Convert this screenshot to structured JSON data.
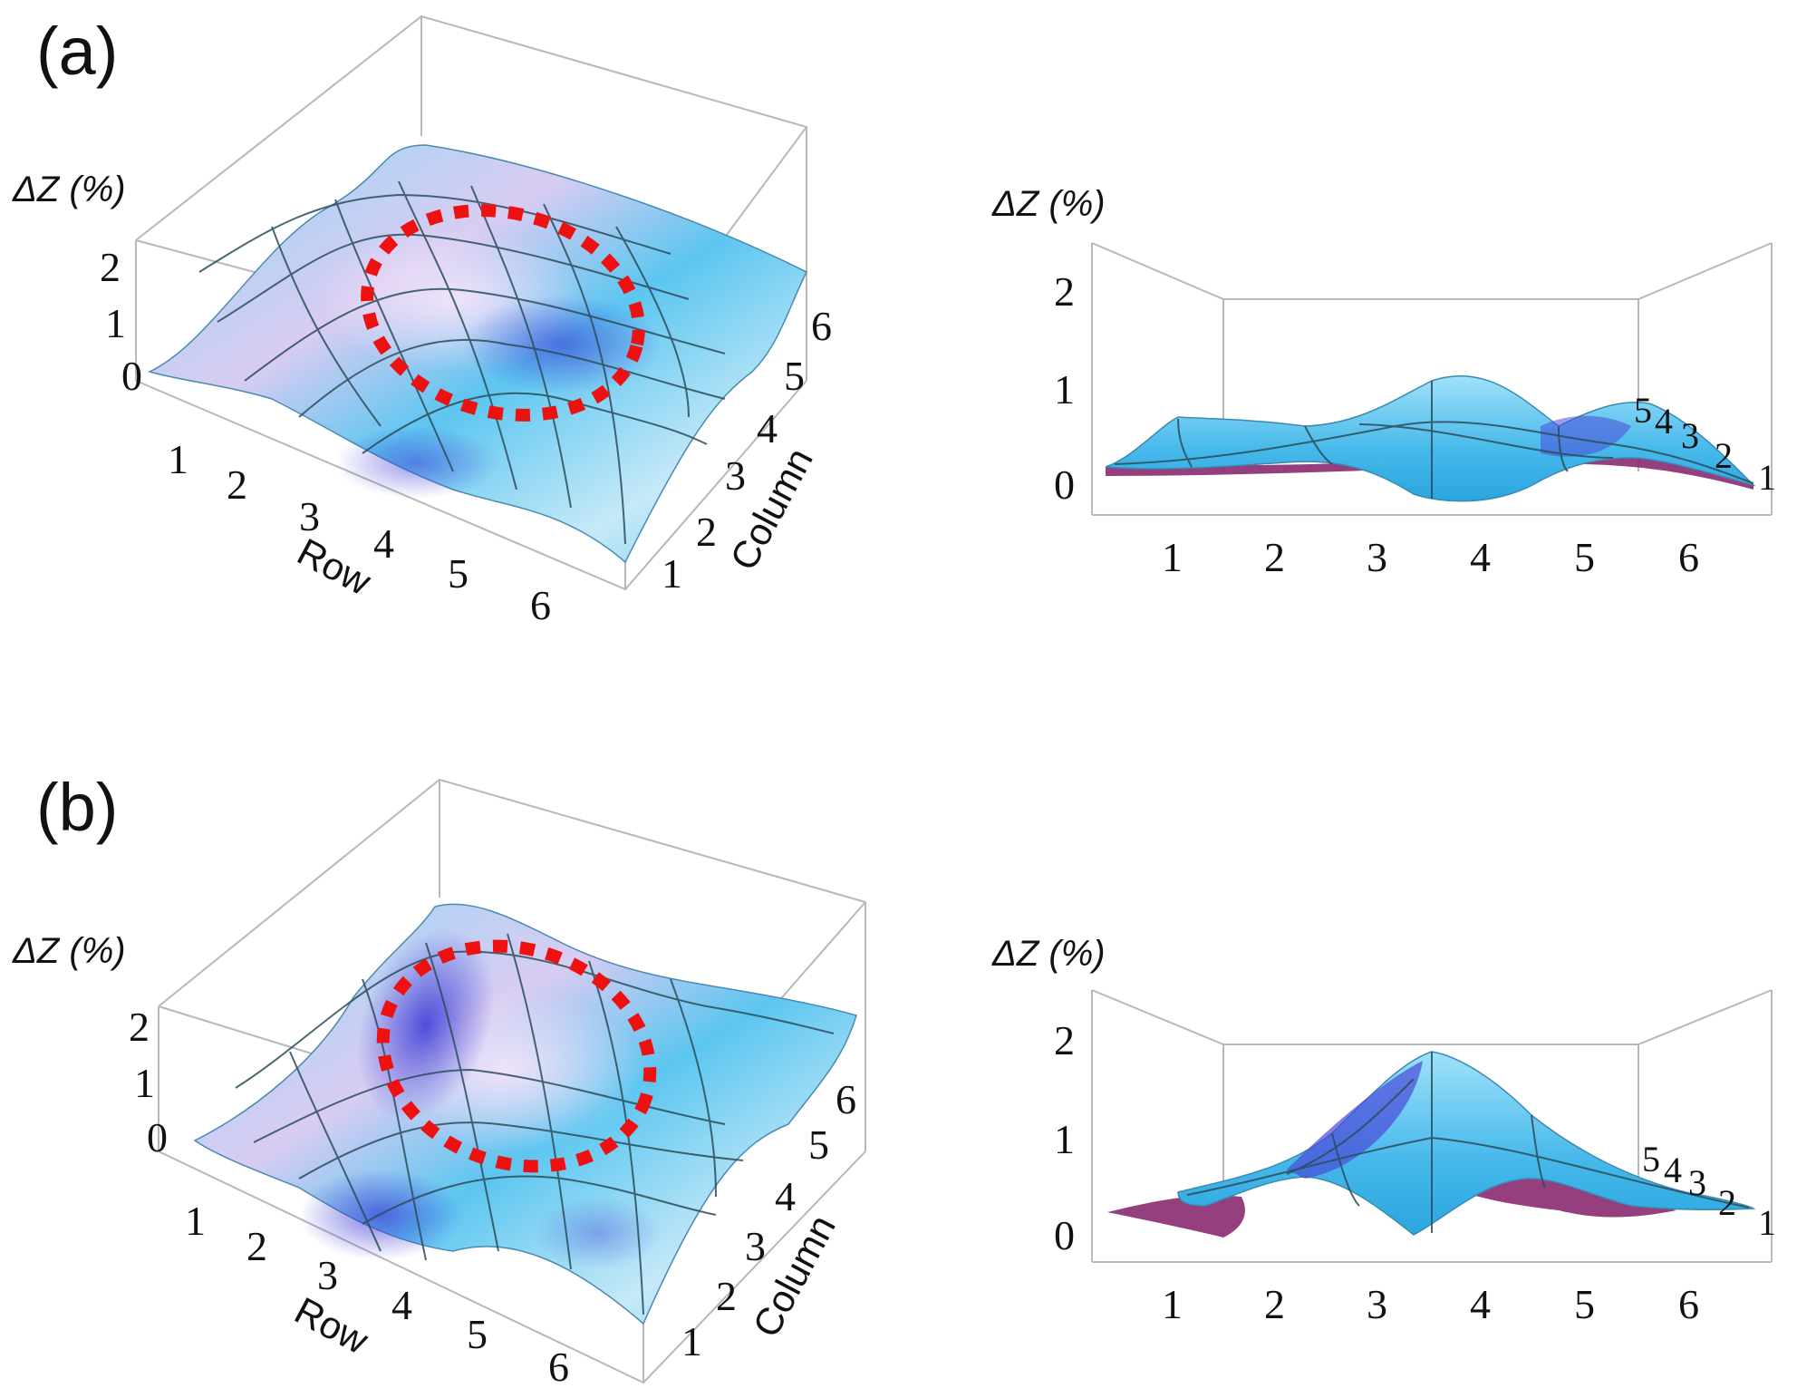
{
  "panels": {
    "a_label": "(a)",
    "b_label": "(b)"
  },
  "colors": {
    "surface_light": "#bfe6f8",
    "surface_mid": "#5cc6f0",
    "surface_dark": "#4a4ad8",
    "surface_pink": "#f0dcf6",
    "underside": "#8a2a70",
    "highlight": "#ee1111",
    "box": "#b8b8b8"
  },
  "chart_data": [
    {
      "type": "surface3d",
      "panel": "(a)",
      "view": "perspective",
      "zlabel": "ΔZ (%)",
      "zticks": [
        "0",
        "1",
        "2"
      ],
      "xlabel": "Row",
      "xticks": [
        "1",
        "2",
        "3",
        "4",
        "5",
        "6"
      ],
      "ylabel": "Column",
      "yticks": [
        "1",
        "2",
        "3",
        "4",
        "5",
        "6"
      ],
      "zlim": [
        0,
        2.2
      ],
      "z": [
        [
          0.2,
          0.3,
          0.4,
          0.5,
          0.4,
          0.3
        ],
        [
          0.2,
          0.4,
          0.8,
          0.9,
          0.6,
          0.4
        ],
        [
          0.2,
          0.6,
          1.0,
          1.1,
          0.8,
          0.5
        ],
        [
          0.2,
          0.5,
          0.9,
          1.0,
          0.7,
          0.5
        ],
        [
          0.3,
          0.4,
          0.6,
          0.7,
          0.6,
          0.4
        ],
        [
          0.3,
          0.3,
          0.4,
          0.4,
          0.4,
          0.3
        ]
      ],
      "highlight": "dotted red ellipse around peak"
    },
    {
      "type": "surface3d",
      "panel": "(a)",
      "view": "side",
      "zlabel": "ΔZ (%)",
      "zticks": [
        "0",
        "1",
        "2"
      ],
      "xticks": [
        "1",
        "2",
        "3",
        "4",
        "5",
        "6"
      ],
      "depth_ticks": [
        "1",
        "2",
        "3",
        "4",
        "5"
      ],
      "zlim": [
        0,
        2.2
      ],
      "profile_front": [
        0.6,
        0.6,
        0.85,
        1.1,
        0.55,
        0.9,
        0.5
      ],
      "profile_back": [
        0.2,
        0.2,
        0.25,
        0.3,
        0.3,
        0.4,
        0.1
      ]
    },
    {
      "type": "surface3d",
      "panel": "(b)",
      "view": "perspective",
      "zlabel": "ΔZ (%)",
      "zticks": [
        "0",
        "1",
        "2"
      ],
      "xlabel": "Row",
      "xticks": [
        "1",
        "2",
        "3",
        "4",
        "5",
        "6"
      ],
      "ylabel": "Column",
      "yticks": [
        "1",
        "2",
        "3",
        "4",
        "5",
        "6"
      ],
      "zlim": [
        0,
        2.2
      ],
      "z": [
        [
          0.2,
          0.3,
          0.6,
          0.7,
          0.5,
          0.3
        ],
        [
          0.2,
          0.6,
          1.2,
          1.4,
          0.9,
          0.5
        ],
        [
          0.3,
          0.9,
          1.7,
          1.8,
          1.2,
          0.6
        ],
        [
          0.3,
          0.8,
          1.4,
          1.5,
          1.0,
          0.6
        ],
        [
          0.3,
          0.5,
          0.8,
          0.9,
          0.8,
          0.5
        ],
        [
          0.3,
          0.4,
          0.5,
          0.5,
          0.5,
          0.4
        ]
      ],
      "highlight": "dotted red ellipse around peak"
    },
    {
      "type": "surface3d",
      "panel": "(b)",
      "view": "side",
      "zlabel": "ΔZ (%)",
      "zticks": [
        "0",
        "1",
        "2"
      ],
      "xticks": [
        "1",
        "2",
        "3",
        "4",
        "5",
        "6"
      ],
      "depth_ticks": [
        "1",
        "2",
        "3",
        "4",
        "5"
      ],
      "zlim": [
        0,
        2.2
      ],
      "profile_front": [
        0.4,
        0.5,
        1.2,
        1.75,
        1.3,
        0.7,
        0.2
      ],
      "profile_back": [
        0.2,
        0.3,
        0.3,
        0.4,
        0.6,
        0.7,
        0.2
      ]
    }
  ]
}
